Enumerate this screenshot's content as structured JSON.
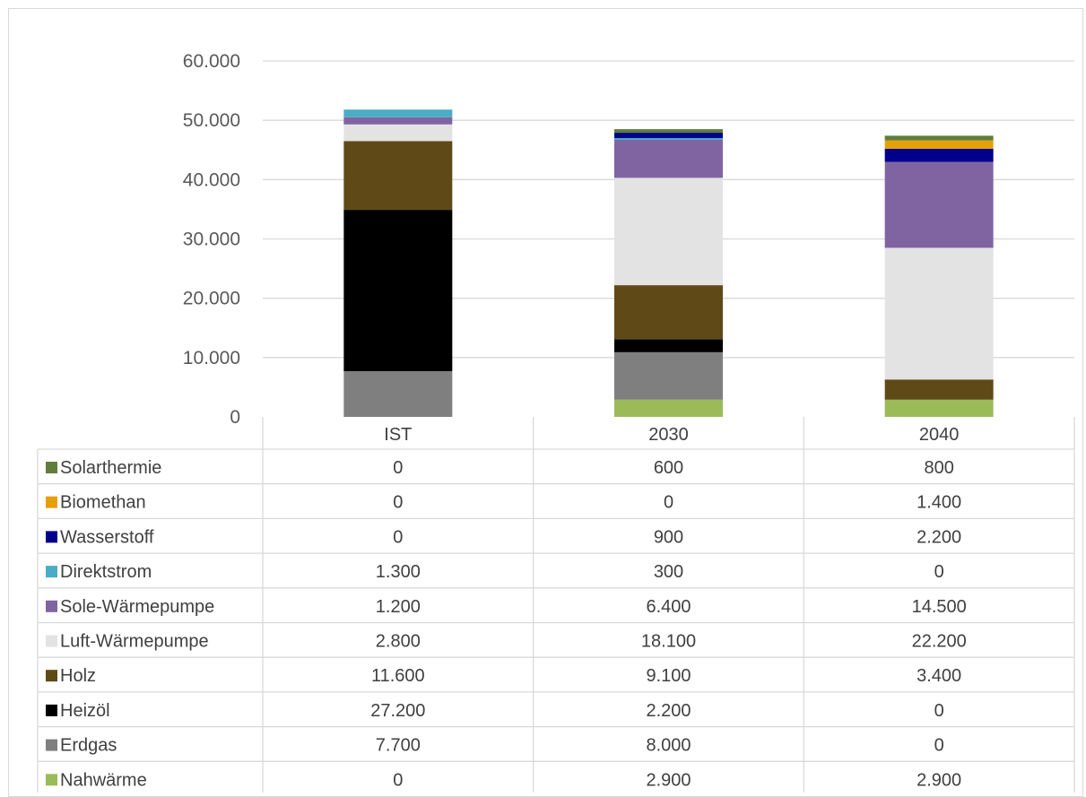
{
  "chart_data": {
    "type": "bar",
    "stacked": true,
    "categories": [
      "IST",
      "2030",
      "2040"
    ],
    "ylim": [
      0,
      60000
    ],
    "y_ticks": [
      "0",
      "10.000",
      "20.000",
      "30.000",
      "40.000",
      "50.000",
      "60.000"
    ],
    "y_tick_values": [
      0,
      10000,
      20000,
      30000,
      40000,
      50000,
      60000
    ],
    "grid": true,
    "legend_placement": "data-table-left",
    "series": [
      {
        "name": "Nahwärme",
        "color": "#9bbb59",
        "values": [
          0,
          2900,
          2900
        ],
        "labels": [
          "0",
          "2.900",
          "2.900"
        ]
      },
      {
        "name": "Erdgas",
        "color": "#7f7f7f",
        "values": [
          7700,
          8000,
          0
        ],
        "labels": [
          "7.700",
          "8.000",
          "0"
        ]
      },
      {
        "name": "Heizöl",
        "color": "#000000",
        "values": [
          27200,
          2200,
          0
        ],
        "labels": [
          "27.200",
          "2.200",
          "0"
        ]
      },
      {
        "name": "Holz",
        "color": "#5f4a17",
        "values": [
          11600,
          9100,
          3400
        ],
        "labels": [
          "11.600",
          "9.100",
          "3.400"
        ]
      },
      {
        "name": "Luft-Wärmepumpe",
        "color": "#e3e3e3",
        "values": [
          2800,
          18100,
          22200
        ],
        "labels": [
          "2.800",
          "18.100",
          "22.200"
        ]
      },
      {
        "name": "Sole-Wärmepumpe",
        "color": "#8064a2",
        "values": [
          1200,
          6400,
          14500
        ],
        "labels": [
          "1.200",
          "6.400",
          "14.500"
        ]
      },
      {
        "name": "Direktstrom",
        "color": "#4bacc6",
        "values": [
          1300,
          300,
          0
        ],
        "labels": [
          "1.300",
          "300",
          "0"
        ]
      },
      {
        "name": "Wasserstoff",
        "color": "#00008b",
        "values": [
          0,
          900,
          2200
        ],
        "labels": [
          "0",
          "900",
          "2.200"
        ]
      },
      {
        "name": "Biomethan",
        "color": "#e6a00a",
        "values": [
          0,
          0,
          1400
        ],
        "labels": [
          "0",
          "0",
          "1.400"
        ]
      },
      {
        "name": "Solarthermie",
        "color": "#607d3b",
        "values": [
          0,
          600,
          800
        ],
        "labels": [
          "0",
          "600",
          "800"
        ]
      }
    ]
  }
}
